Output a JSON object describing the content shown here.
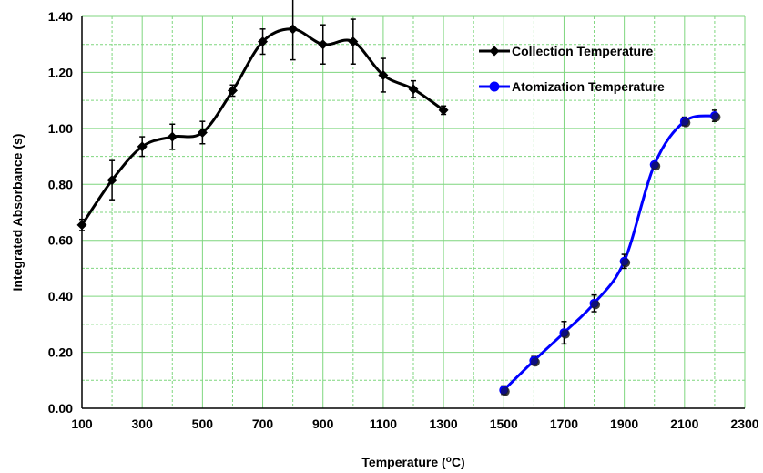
{
  "chart_data": {
    "type": "line",
    "title": "",
    "xlabel": "Temperature (",
    "xlabel_sup": "o",
    "xlabel_end": "C)",
    "ylabel": "Integrated Absorbance (s)",
    "xlim": [
      100,
      2300
    ],
    "ylim": [
      0,
      1.4
    ],
    "x_ticks": [
      100,
      300,
      500,
      700,
      900,
      1100,
      1300,
      1500,
      1700,
      1900,
      2100,
      2300
    ],
    "x_tick_labels": [
      "100",
      "300",
      "500",
      "700",
      "900",
      "1100",
      "1300",
      "1500",
      "1700",
      "1900",
      "2100",
      "2300"
    ],
    "y_ticks": [
      0,
      0.2,
      0.4,
      0.6,
      0.8,
      1.0,
      1.2,
      1.4
    ],
    "y_tick_labels": [
      "0.00",
      "0.20",
      "0.40",
      "0.60",
      "0.80",
      "1.00",
      "1.20",
      "1.40"
    ],
    "grid": true,
    "grid_color": "#7fd67f",
    "legend_position": "top-right",
    "series": [
      {
        "name": "Collection Temperature",
        "color": "#000000",
        "marker": "diamond",
        "x": [
          100,
          200,
          300,
          400,
          500,
          600,
          700,
          800,
          900,
          1000,
          1100,
          1200,
          1300
        ],
        "y": [
          0.655,
          0.815,
          0.935,
          0.97,
          0.985,
          1.135,
          1.31,
          1.355,
          1.3,
          1.31,
          1.19,
          1.14,
          1.065
        ],
        "err": [
          0.02,
          0.07,
          0.035,
          0.045,
          0.04,
          0.02,
          0.045,
          0.11,
          0.07,
          0.08,
          0.06,
          0.03,
          0.015
        ]
      },
      {
        "name": "Atomization Temperature",
        "color": "#0000ff",
        "marker": "circle",
        "x": [
          1500,
          1600,
          1700,
          1800,
          1900,
          2000,
          2100,
          2200
        ],
        "y": [
          0.065,
          0.17,
          0.27,
          0.375,
          0.525,
          0.87,
          1.025,
          1.045
        ],
        "err": [
          0.015,
          0.015,
          0.04,
          0.03,
          0.025,
          0.01,
          0.015,
          0.02
        ]
      }
    ]
  }
}
